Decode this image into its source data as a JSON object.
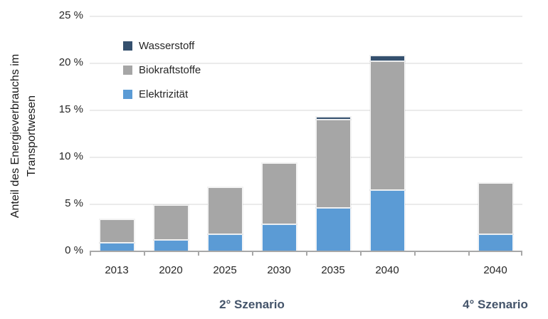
{
  "colors": {
    "wasserstoff": "#35506E",
    "biokraftstoffe": "#A6A6A6",
    "elektrizitaet": "#5B9BD5",
    "gridline": "#EBEBEB",
    "axis_line": "#A8A8A8",
    "scenario_label": "#44546A",
    "text": "#262626"
  },
  "y_axis": {
    "title_line1": "Anteil des Energieverbrauchs im",
    "title_line2": "Transportwesen",
    "tick_labels": [
      "25 %",
      "20 %",
      "15 %",
      "10 %",
      "5 %",
      "0 %"
    ]
  },
  "legend": {
    "items": [
      {
        "label": "Wasserstoff",
        "color": "#35506E"
      },
      {
        "label": "Biokraftstoffe",
        "color": "#A6A6A6"
      },
      {
        "label": "Elektrizität",
        "color": "#5B9BD5"
      }
    ]
  },
  "chart_data": {
    "type": "bar",
    "stacked": true,
    "title": "",
    "xlabel": "",
    "ylabel": "Anteil des Energieverbrauchs im Transportwesen",
    "ylim": [
      0,
      25
    ],
    "ytick_step": 5,
    "ytick_values": [
      25,
      20,
      15,
      10,
      5,
      0
    ],
    "grid": "horizontal",
    "legend_position": "upper-left-inside",
    "categories": [
      "2013",
      "2020",
      "2025",
      "2030",
      "2035",
      "2040",
      "",
      "2040"
    ],
    "series": [
      {
        "name": "Elektrizität",
        "color": "#5B9BD5",
        "values": [
          0.9,
          1.2,
          1.8,
          2.9,
          4.6,
          6.5,
          null,
          1.8
        ]
      },
      {
        "name": "Biokraftstoffe",
        "color": "#A6A6A6",
        "values": [
          2.5,
          3.7,
          5.0,
          6.5,
          9.4,
          13.7,
          null,
          5.5
        ]
      },
      {
        "name": "Wasserstoff",
        "color": "#35506E",
        "values": [
          0,
          0,
          0,
          0,
          0.3,
          0.6,
          null,
          0
        ]
      }
    ],
    "totals_percent": [
      3.4,
      4.9,
      6.8,
      9.4,
      14.3,
      20.8,
      null,
      7.3
    ],
    "group_labels": [
      {
        "label": "2° Szenario",
        "span": [
          0,
          5
        ]
      },
      {
        "label": "4° Szenario",
        "span": [
          7,
          7
        ]
      }
    ]
  }
}
